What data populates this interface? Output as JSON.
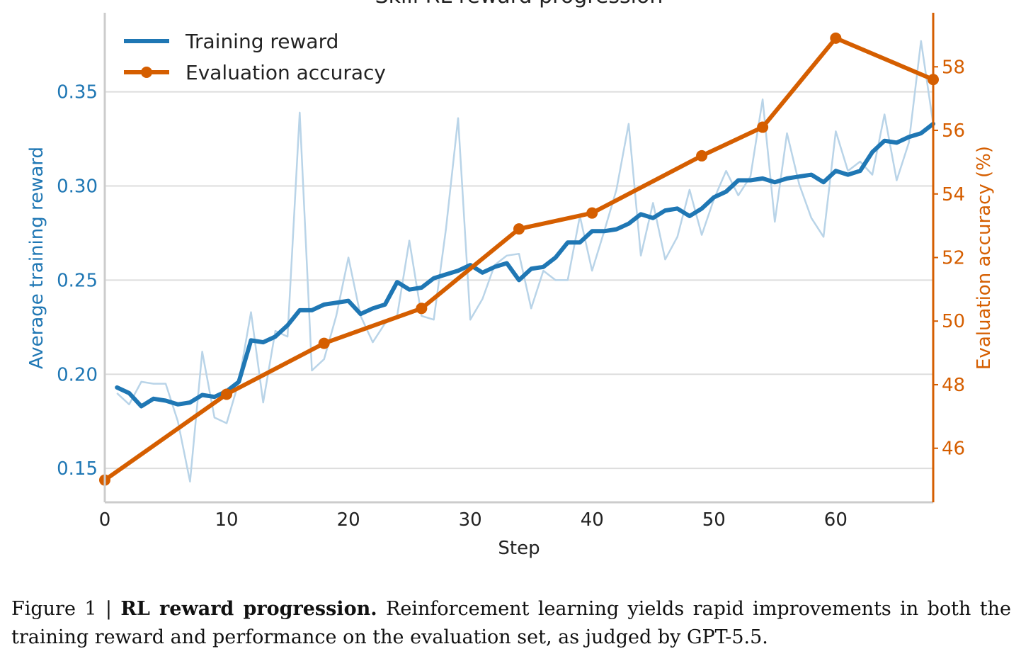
{
  "chart_data": {
    "type": "line",
    "title": "Skill RL reward progression",
    "xlabel": "Step",
    "ylabel_left": "Average training reward",
    "ylabel_right": "Evaluation accuracy (%)",
    "xlim": [
      0,
      68
    ],
    "ylim_left": [
      0.132,
      0.392
    ],
    "ylim_right": [
      44.3,
      59.7
    ],
    "x_ticks": [
      "0",
      "10",
      "20",
      "30",
      "40",
      "50",
      "60"
    ],
    "y_left_ticks": [
      "0.15",
      "0.20",
      "0.25",
      "0.30",
      "0.35"
    ],
    "y_right_ticks": [
      "46",
      "48",
      "50",
      "52",
      "54",
      "56",
      "58"
    ],
    "grid": true,
    "legend_position": "top-left",
    "colors": {
      "training": "#1f77b4",
      "training_raw": "#b9d4e8",
      "evaluation": "#d55e00",
      "grid": "#dddddd",
      "axis": "#cccccc"
    },
    "series": [
      {
        "name": "Training reward",
        "axis": "left",
        "x": [
          1,
          2,
          3,
          4,
          5,
          6,
          7,
          8,
          9,
          10,
          11,
          12,
          13,
          14,
          15,
          16,
          17,
          18,
          19,
          20,
          21,
          22,
          23,
          24,
          25,
          26,
          27,
          28,
          29,
          30,
          31,
          32,
          33,
          34,
          35,
          36,
          37,
          38,
          39,
          40,
          41,
          42,
          43,
          44,
          45,
          46,
          47,
          48,
          49,
          50,
          51,
          52,
          53,
          54,
          55,
          56,
          57,
          58,
          59,
          60,
          61,
          62,
          63,
          64,
          65,
          66,
          67,
          68
        ],
        "values": [
          0.193,
          0.19,
          0.183,
          0.187,
          0.186,
          0.184,
          0.185,
          0.189,
          0.188,
          0.191,
          0.196,
          0.218,
          0.217,
          0.22,
          0.226,
          0.234,
          0.234,
          0.237,
          0.238,
          0.239,
          0.232,
          0.235,
          0.237,
          0.249,
          0.245,
          0.246,
          0.251,
          0.253,
          0.255,
          0.258,
          0.254,
          0.257,
          0.259,
          0.25,
          0.256,
          0.257,
          0.262,
          0.27,
          0.27,
          0.276,
          0.276,
          0.277,
          0.28,
          0.285,
          0.283,
          0.287,
          0.288,
          0.284,
          0.288,
          0.294,
          0.297,
          0.303,
          0.303,
          0.304,
          0.302,
          0.304,
          0.305,
          0.306,
          0.302,
          0.308,
          0.306,
          0.308,
          0.318,
          0.324,
          0.323,
          0.326,
          0.328,
          0.333
        ]
      },
      {
        "name": "Training reward (raw)",
        "axis": "left",
        "x": [
          1,
          2,
          3,
          4,
          5,
          6,
          7,
          8,
          9,
          10,
          11,
          12,
          13,
          14,
          15,
          16,
          17,
          18,
          19,
          20,
          21,
          22,
          23,
          24,
          25,
          26,
          27,
          28,
          29,
          30,
          31,
          32,
          33,
          34,
          35,
          36,
          37,
          38,
          39,
          40,
          41,
          42,
          43,
          44,
          45,
          46,
          47,
          48,
          49,
          50,
          51,
          52,
          53,
          54,
          55,
          56,
          57,
          58,
          59,
          60,
          61,
          62,
          63,
          64,
          65,
          66,
          67,
          68
        ],
        "values": [
          0.19,
          0.184,
          0.196,
          0.195,
          0.195,
          0.175,
          0.143,
          0.212,
          0.177,
          0.174,
          0.196,
          0.233,
          0.185,
          0.223,
          0.22,
          0.339,
          0.202,
          0.208,
          0.231,
          0.262,
          0.231,
          0.217,
          0.227,
          0.231,
          0.271,
          0.231,
          0.229,
          0.277,
          0.336,
          0.229,
          0.24,
          0.258,
          0.263,
          0.264,
          0.235,
          0.255,
          0.25,
          0.25,
          0.284,
          0.255,
          0.276,
          0.298,
          0.333,
          0.263,
          0.291,
          0.261,
          0.273,
          0.298,
          0.274,
          0.293,
          0.308,
          0.295,
          0.305,
          0.346,
          0.281,
          0.328,
          0.301,
          0.283,
          0.273,
          0.329,
          0.308,
          0.313,
          0.306,
          0.338,
          0.303,
          0.323,
          0.377,
          0.333
        ]
      },
      {
        "name": "Evaluation accuracy",
        "axis": "right",
        "x": [
          0,
          10,
          18,
          26,
          34,
          40,
          49,
          54,
          60,
          68
        ],
        "values": [
          45.0,
          47.7,
          49.3,
          50.4,
          52.9,
          53.4,
          55.2,
          56.1,
          58.9,
          57.6
        ]
      }
    ]
  },
  "legend": {
    "training_label": "Training reward",
    "evaluation_label": "Evaluation accuracy"
  },
  "caption": {
    "prefix": "Figure 1 | ",
    "title": "RL reward progression.",
    "text": " Reinforcement learning yields rapid improvements in both the training reward and performance on the evaluation set, as judged by GPT-5.5."
  }
}
